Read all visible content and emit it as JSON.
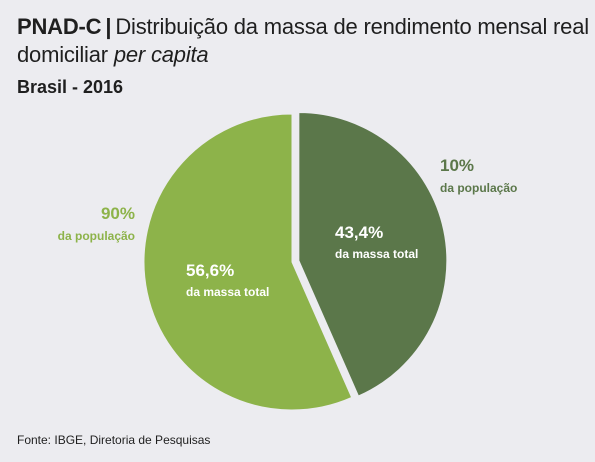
{
  "title": {
    "brand": "PNAD-C",
    "separator": "|",
    "text": "Distribuição da massa de rendimento mensal real",
    "text_line2": "domiciliar",
    "text_italic": "per capita"
  },
  "subtitle": "Brasil - 2016",
  "source": "Fonte: IBGE, Diretoria de Pesquisas",
  "colors": {
    "light_green": "#8db34a",
    "dark_green": "#5b774a",
    "inner_label": "#ffffff",
    "separator": "#ececf0"
  },
  "chart_data": {
    "type": "pie",
    "slices": [
      {
        "value": 43.4,
        "pct_label": "43,4%",
        "pct_caption": "da massa total",
        "pop_label": "10%",
        "pop_caption": "da população",
        "color": "#5b774a"
      },
      {
        "value": 56.6,
        "pct_label": "56,6%",
        "pct_caption": "da massa total",
        "pop_label": "90%",
        "pop_caption": "da população",
        "color": "#8db34a"
      }
    ]
  }
}
